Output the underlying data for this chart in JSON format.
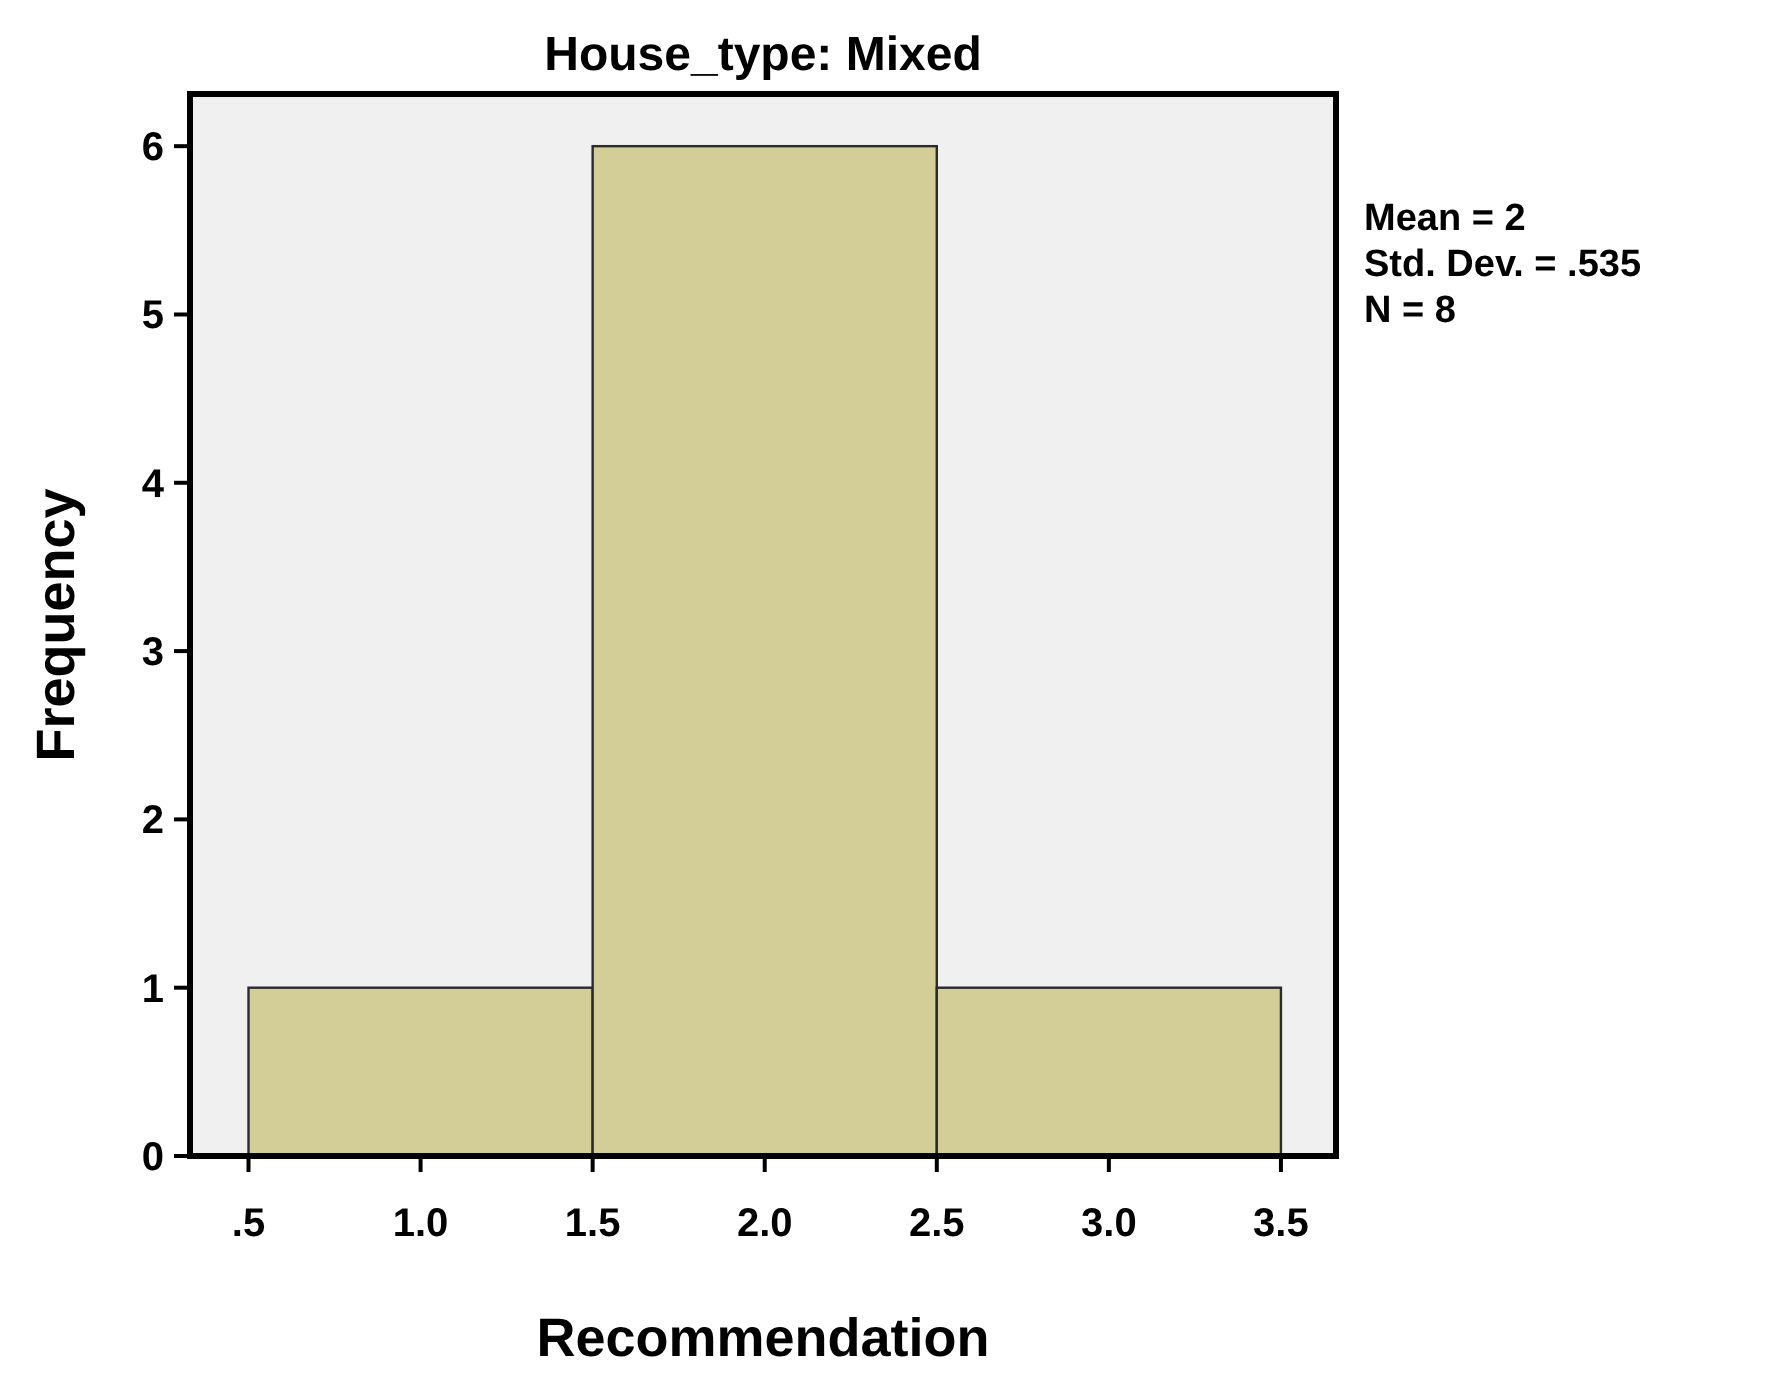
{
  "chart_data": {
    "type": "histogram",
    "title": "House_type: Mixed",
    "xlabel": "Recommendation",
    "ylabel": "Frequency",
    "bins": [
      0.5,
      1.5,
      2.5,
      3.5
    ],
    "values": [
      1,
      6,
      1
    ],
    "color": "#d3ce97",
    "xlim": [
      0.33,
      3.66
    ],
    "ylim": [
      0,
      6.31
    ],
    "xticks": [
      {
        "value": 0.5,
        "label": ".5"
      },
      {
        "value": 1,
        "label": "1.0"
      },
      {
        "value": 1.5,
        "label": "1.5"
      },
      {
        "value": 2,
        "label": "2.0"
      },
      {
        "value": 2.5,
        "label": "2.5"
      },
      {
        "value": 3,
        "label": "3.0"
      },
      {
        "value": 3.5,
        "label": "3.5"
      }
    ],
    "yticks": [
      0,
      1,
      2,
      3,
      4,
      5,
      6
    ],
    "annotations": [
      "Mean = 2",
      "Std. Dev. = .535",
      "N = 8"
    ]
  }
}
